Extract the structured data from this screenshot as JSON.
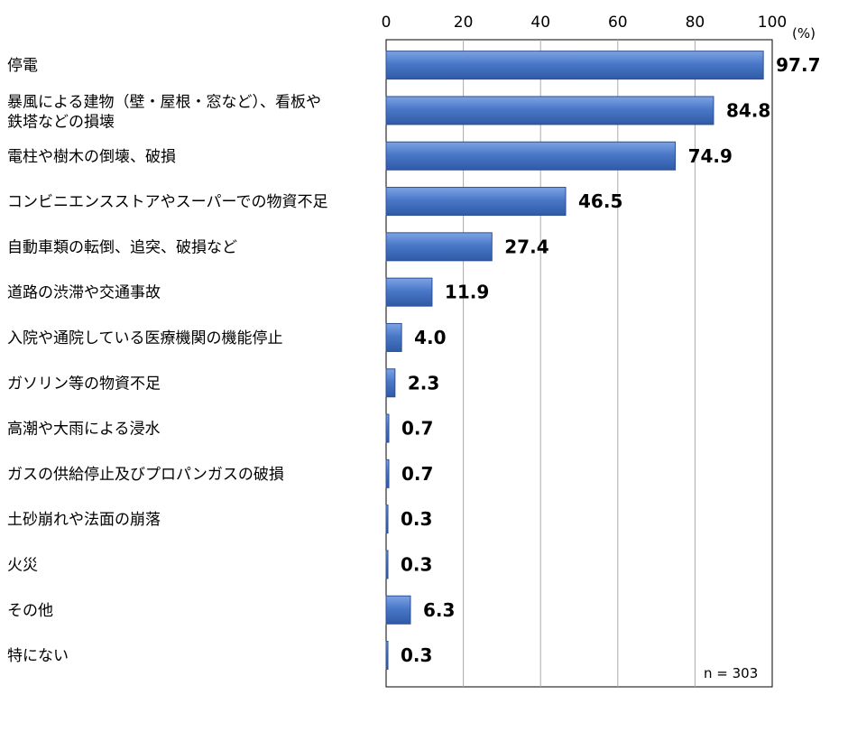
{
  "chart_data": {
    "type": "bar",
    "orientation": "horizontal",
    "unit_label": "(%)",
    "note": "n = 303",
    "xlim": [
      0,
      100
    ],
    "ticks": [
      0,
      20,
      40,
      60,
      80,
      100
    ],
    "grid": true,
    "colors": {
      "bar": "#4a78c8",
      "bar_light": "#6d96dc",
      "bar_dark": "#2c4f91",
      "grid": "#aaaaaa"
    },
    "categories": [
      [
        "停電"
      ],
      [
        "暴風による建物（壁・屋根・窓など）、看板や",
        "鉄塔などの損壊"
      ],
      [
        "電柱や樹木の倒壊、破損"
      ],
      [
        "コンビニエンスストアやスーパーでの物資不足"
      ],
      [
        "自動車類の転倒、追突、破損など"
      ],
      [
        "道路の渋滞や交通事故"
      ],
      [
        "入院や通院している医療機関の機能停止"
      ],
      [
        "ガソリン等の物資不足"
      ],
      [
        "高潮や大雨による浸水"
      ],
      [
        "ガスの供給停止及びプロパンガスの破損"
      ],
      [
        "土砂崩れや法面の崩落"
      ],
      [
        "火災"
      ],
      [
        "その他"
      ],
      [
        "特にない"
      ]
    ],
    "values": [
      97.7,
      84.8,
      74.9,
      46.5,
      27.4,
      11.9,
      4.0,
      2.3,
      0.7,
      0.7,
      0.3,
      0.3,
      6.3,
      0.3
    ],
    "value_labels": [
      "97.7",
      "84.8",
      "74.9",
      "46.5",
      "27.4",
      "11.9",
      "4.0",
      "2.3",
      "0.7",
      "0.7",
      "0.3",
      "0.3",
      "6.3",
      "0.3"
    ]
  }
}
